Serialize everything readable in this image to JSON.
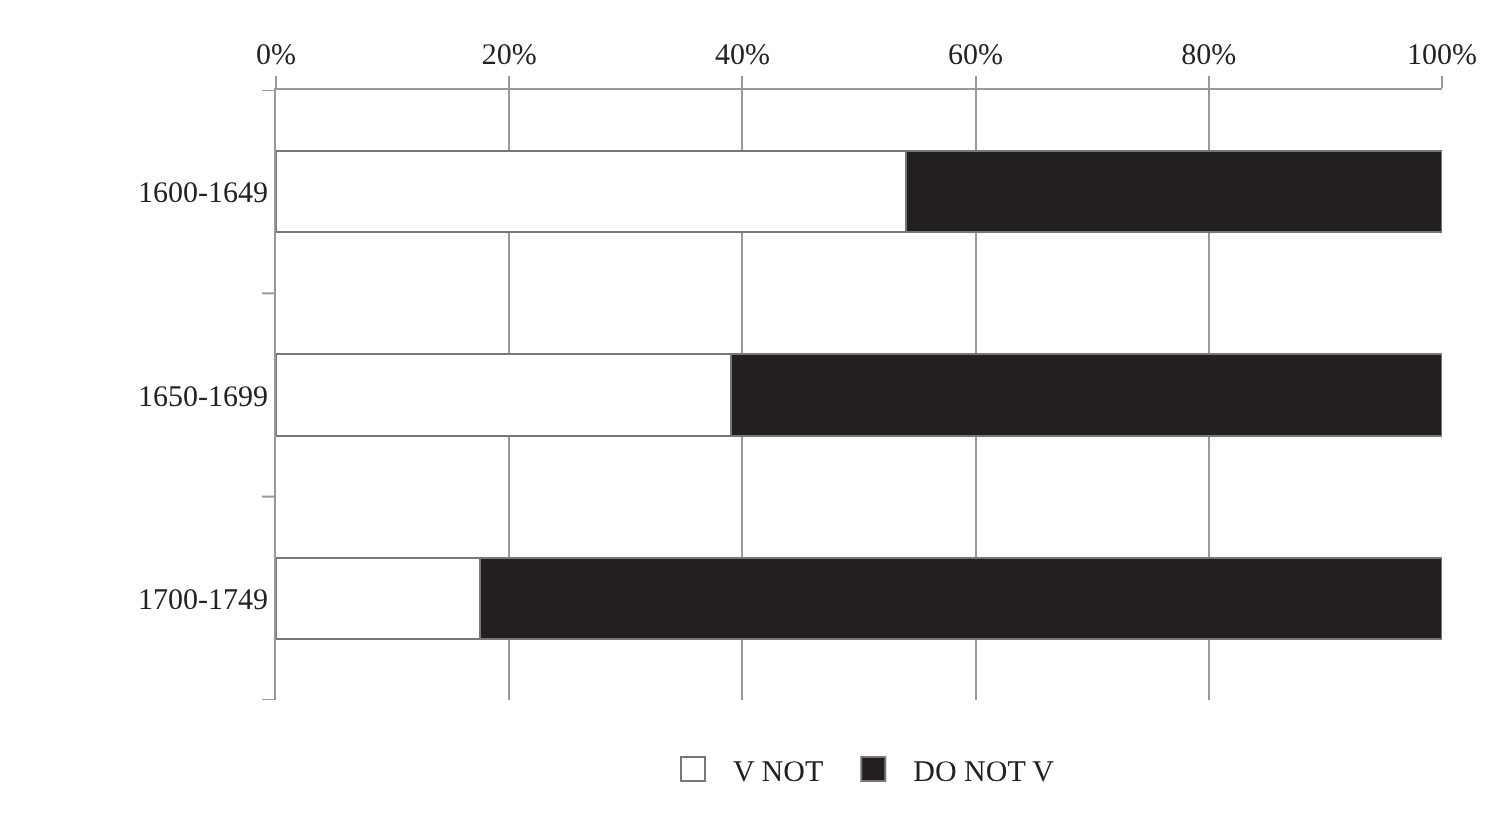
{
  "chart_data": {
    "type": "bar",
    "orientation": "horizontal",
    "stacked": true,
    "categories": [
      "1600-1649",
      "1650-1699",
      "1700-1749"
    ],
    "series": [
      {
        "name": "V NOT",
        "color": "#ffffff",
        "values": [
          54,
          39,
          17.5
        ]
      },
      {
        "name": "DO NOT V",
        "color": "#231f20",
        "values": [
          46,
          61,
          82.5
        ]
      }
    ],
    "xlim": [
      0,
      100
    ],
    "xticks": [
      {
        "value": 0,
        "label": "0%"
      },
      {
        "value": 20,
        "label": "20%"
      },
      {
        "value": 40,
        "label": "40%"
      },
      {
        "value": 60,
        "label": "60%"
      },
      {
        "value": 80,
        "label": "80%"
      },
      {
        "value": 100,
        "label": "100%"
      }
    ],
    "grid": "x",
    "legend": "bottom"
  }
}
